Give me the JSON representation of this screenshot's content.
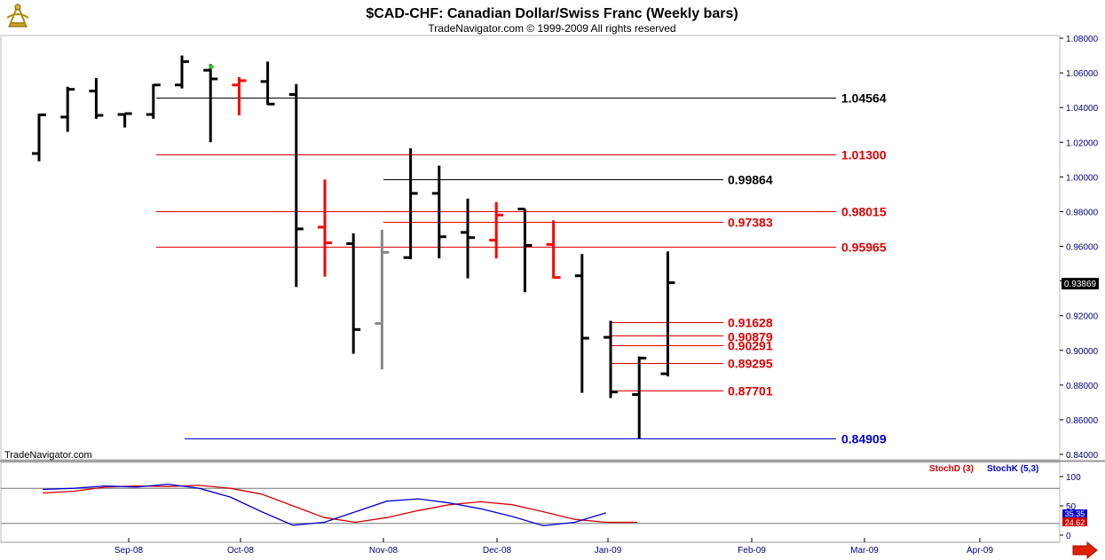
{
  "header": {
    "title": "$CAD-CHF:  Canadian Dollar/Swiss Franc  (Weekly bars)",
    "subtitle": "TradeNavigator.com © 1999-2009 All rights reserved",
    "logo_icon": "sextant-logo-icon"
  },
  "watermark": "TradeNavigator.com",
  "last_price_label": "0.93869",
  "colors": {
    "up_bar": "#000000",
    "down_bar": "#ff0000",
    "neutral_bar": "#888888",
    "level_black": "#000000",
    "level_red": "#e00000",
    "level_blue": "#0000cc",
    "stoch_d": "#d40000",
    "stoch_k": "#0000d4",
    "axis_text_blue": "#000080",
    "last_price_bg": "#000000"
  },
  "chart_data": [
    {
      "type": "ohlc",
      "title": "$CAD-CHF:  Canadian Dollar/Swiss Franc  (Weekly bars)",
      "ylim": [
        0.84,
        1.08
      ],
      "y_ticks": [
        "1.08000",
        "1.06000",
        "1.04000",
        "1.02000",
        "1.00000",
        "0.98000",
        "0.96000",
        "0.94000",
        "0.92000",
        "0.90000",
        "0.88000",
        "0.86000",
        "0.84000"
      ],
      "x_ticks": [
        "Sep-08",
        "Oct-08",
        "Nov-08",
        "Dec-08",
        "Jan-09",
        "Feb-09",
        "Mar-09",
        "Apr-09"
      ],
      "bars": [
        {
          "o": 1.0135,
          "h": 1.0365,
          "l": 1.009,
          "c": 1.0358,
          "color": "black"
        },
        {
          "o": 1.0345,
          "h": 1.052,
          "l": 1.026,
          "c": 1.0505,
          "color": "black"
        },
        {
          "o": 1.0495,
          "h": 1.057,
          "l": 1.0335,
          "c": 1.0355,
          "color": "black"
        },
        {
          "o": 1.036,
          "h": 1.0365,
          "l": 1.0285,
          "c": 1.0365,
          "color": "black"
        },
        {
          "o": 1.036,
          "h": 1.0535,
          "l": 1.0335,
          "c": 1.053,
          "color": "black"
        },
        {
          "o": 1.053,
          "h": 1.07,
          "l": 1.051,
          "c": 1.0665,
          "color": "black"
        },
        {
          "o": 1.0615,
          "h": 1.065,
          "l": 1.02,
          "c": 1.0565,
          "color": "black"
        },
        {
          "o": 1.053,
          "h": 1.0575,
          "l": 1.0355,
          "c": 1.0555,
          "color": "red"
        },
        {
          "o": 1.055,
          "h": 1.0665,
          "l": 1.0415,
          "c": 1.042,
          "color": "black"
        },
        {
          "o": 1.0475,
          "h": 1.0535,
          "l": 0.9365,
          "c": 0.97,
          "color": "black"
        },
        {
          "o": 0.971,
          "h": 0.9985,
          "l": 0.9425,
          "c": 0.962,
          "color": "red"
        },
        {
          "o": 0.9615,
          "h": 0.9675,
          "l": 0.898,
          "c": 0.912,
          "color": "black"
        },
        {
          "o": 0.9155,
          "h": 0.9695,
          "l": 0.889,
          "c": 0.9565,
          "color": "gray"
        },
        {
          "o": 0.9535,
          "h": 1.0165,
          "l": 0.9525,
          "c": 0.9905,
          "color": "black"
        },
        {
          "o": 0.9905,
          "h": 1.0065,
          "l": 0.953,
          "c": 0.9655,
          "color": "black"
        },
        {
          "o": 0.968,
          "h": 0.9875,
          "l": 0.9415,
          "c": 0.965,
          "color": "black"
        },
        {
          "o": 0.9635,
          "h": 0.9855,
          "l": 0.953,
          "c": 0.978,
          "color": "red"
        },
        {
          "o": 0.9815,
          "h": 0.9815,
          "l": 0.9335,
          "c": 0.9605,
          "color": "black"
        },
        {
          "o": 0.961,
          "h": 0.975,
          "l": 0.9415,
          "c": 0.942,
          "color": "red"
        },
        {
          "o": 0.943,
          "h": 0.9555,
          "l": 0.8755,
          "c": 0.907,
          "color": "black"
        },
        {
          "o": 0.9075,
          "h": 0.917,
          "l": 0.8725,
          "c": 0.876,
          "color": "black"
        },
        {
          "o": 0.8745,
          "h": 0.8965,
          "l": 0.849,
          "c": 0.8955,
          "color": "black"
        },
        {
          "o": 0.8865,
          "h": 0.957,
          "l": 0.885,
          "c": 0.939,
          "color": "black"
        }
      ],
      "levels": [
        {
          "value": 1.04564,
          "label": "1.04564",
          "color": "black"
        },
        {
          "value": 1.013,
          "label": "1.01300",
          "color": "red"
        },
        {
          "value": 0.99864,
          "label": "0.99864",
          "color": "black"
        },
        {
          "value": 0.98015,
          "label": "0.98015",
          "color": "red"
        },
        {
          "value": 0.97383,
          "label": "0.97383",
          "color": "red"
        },
        {
          "value": 0.95965,
          "label": "0.95965",
          "color": "red"
        },
        {
          "value": 0.91628,
          "label": "0.91628",
          "color": "red"
        },
        {
          "value": 0.90879,
          "label": "0.90879",
          "color": "red"
        },
        {
          "value": 0.90291,
          "label": "0.90291",
          "color": "red"
        },
        {
          "value": 0.89295,
          "label": "0.89295",
          "color": "red"
        },
        {
          "value": 0.87701,
          "label": "0.87701",
          "color": "red"
        },
        {
          "value": 0.84909,
          "label": "0.84909",
          "color": "blue"
        }
      ],
      "last_price": 0.93869
    },
    {
      "type": "line",
      "legend": [
        "StochD (3)",
        "StochK (5,3)"
      ],
      "ylim": [
        0,
        100
      ],
      "y_ticks": [
        "100",
        "50",
        "0"
      ],
      "reference_lines": [
        80,
        20
      ],
      "last_values": {
        "stoch_k": "35.35",
        "stoch_d": "24.62"
      },
      "series": [
        {
          "name": "StochD (3)",
          "color": "red",
          "values": [
            72,
            75,
            82,
            84,
            83,
            85,
            80,
            70,
            50,
            30,
            22,
            30,
            42,
            52,
            57,
            52,
            40,
            27,
            22,
            22
          ]
        },
        {
          "name": "StochK (5,3)",
          "color": "blue",
          "values": [
            78,
            80,
            84,
            82,
            87,
            80,
            65,
            40,
            17,
            22,
            40,
            58,
            62,
            55,
            45,
            32,
            16,
            22,
            38,
            null
          ]
        }
      ]
    }
  ]
}
